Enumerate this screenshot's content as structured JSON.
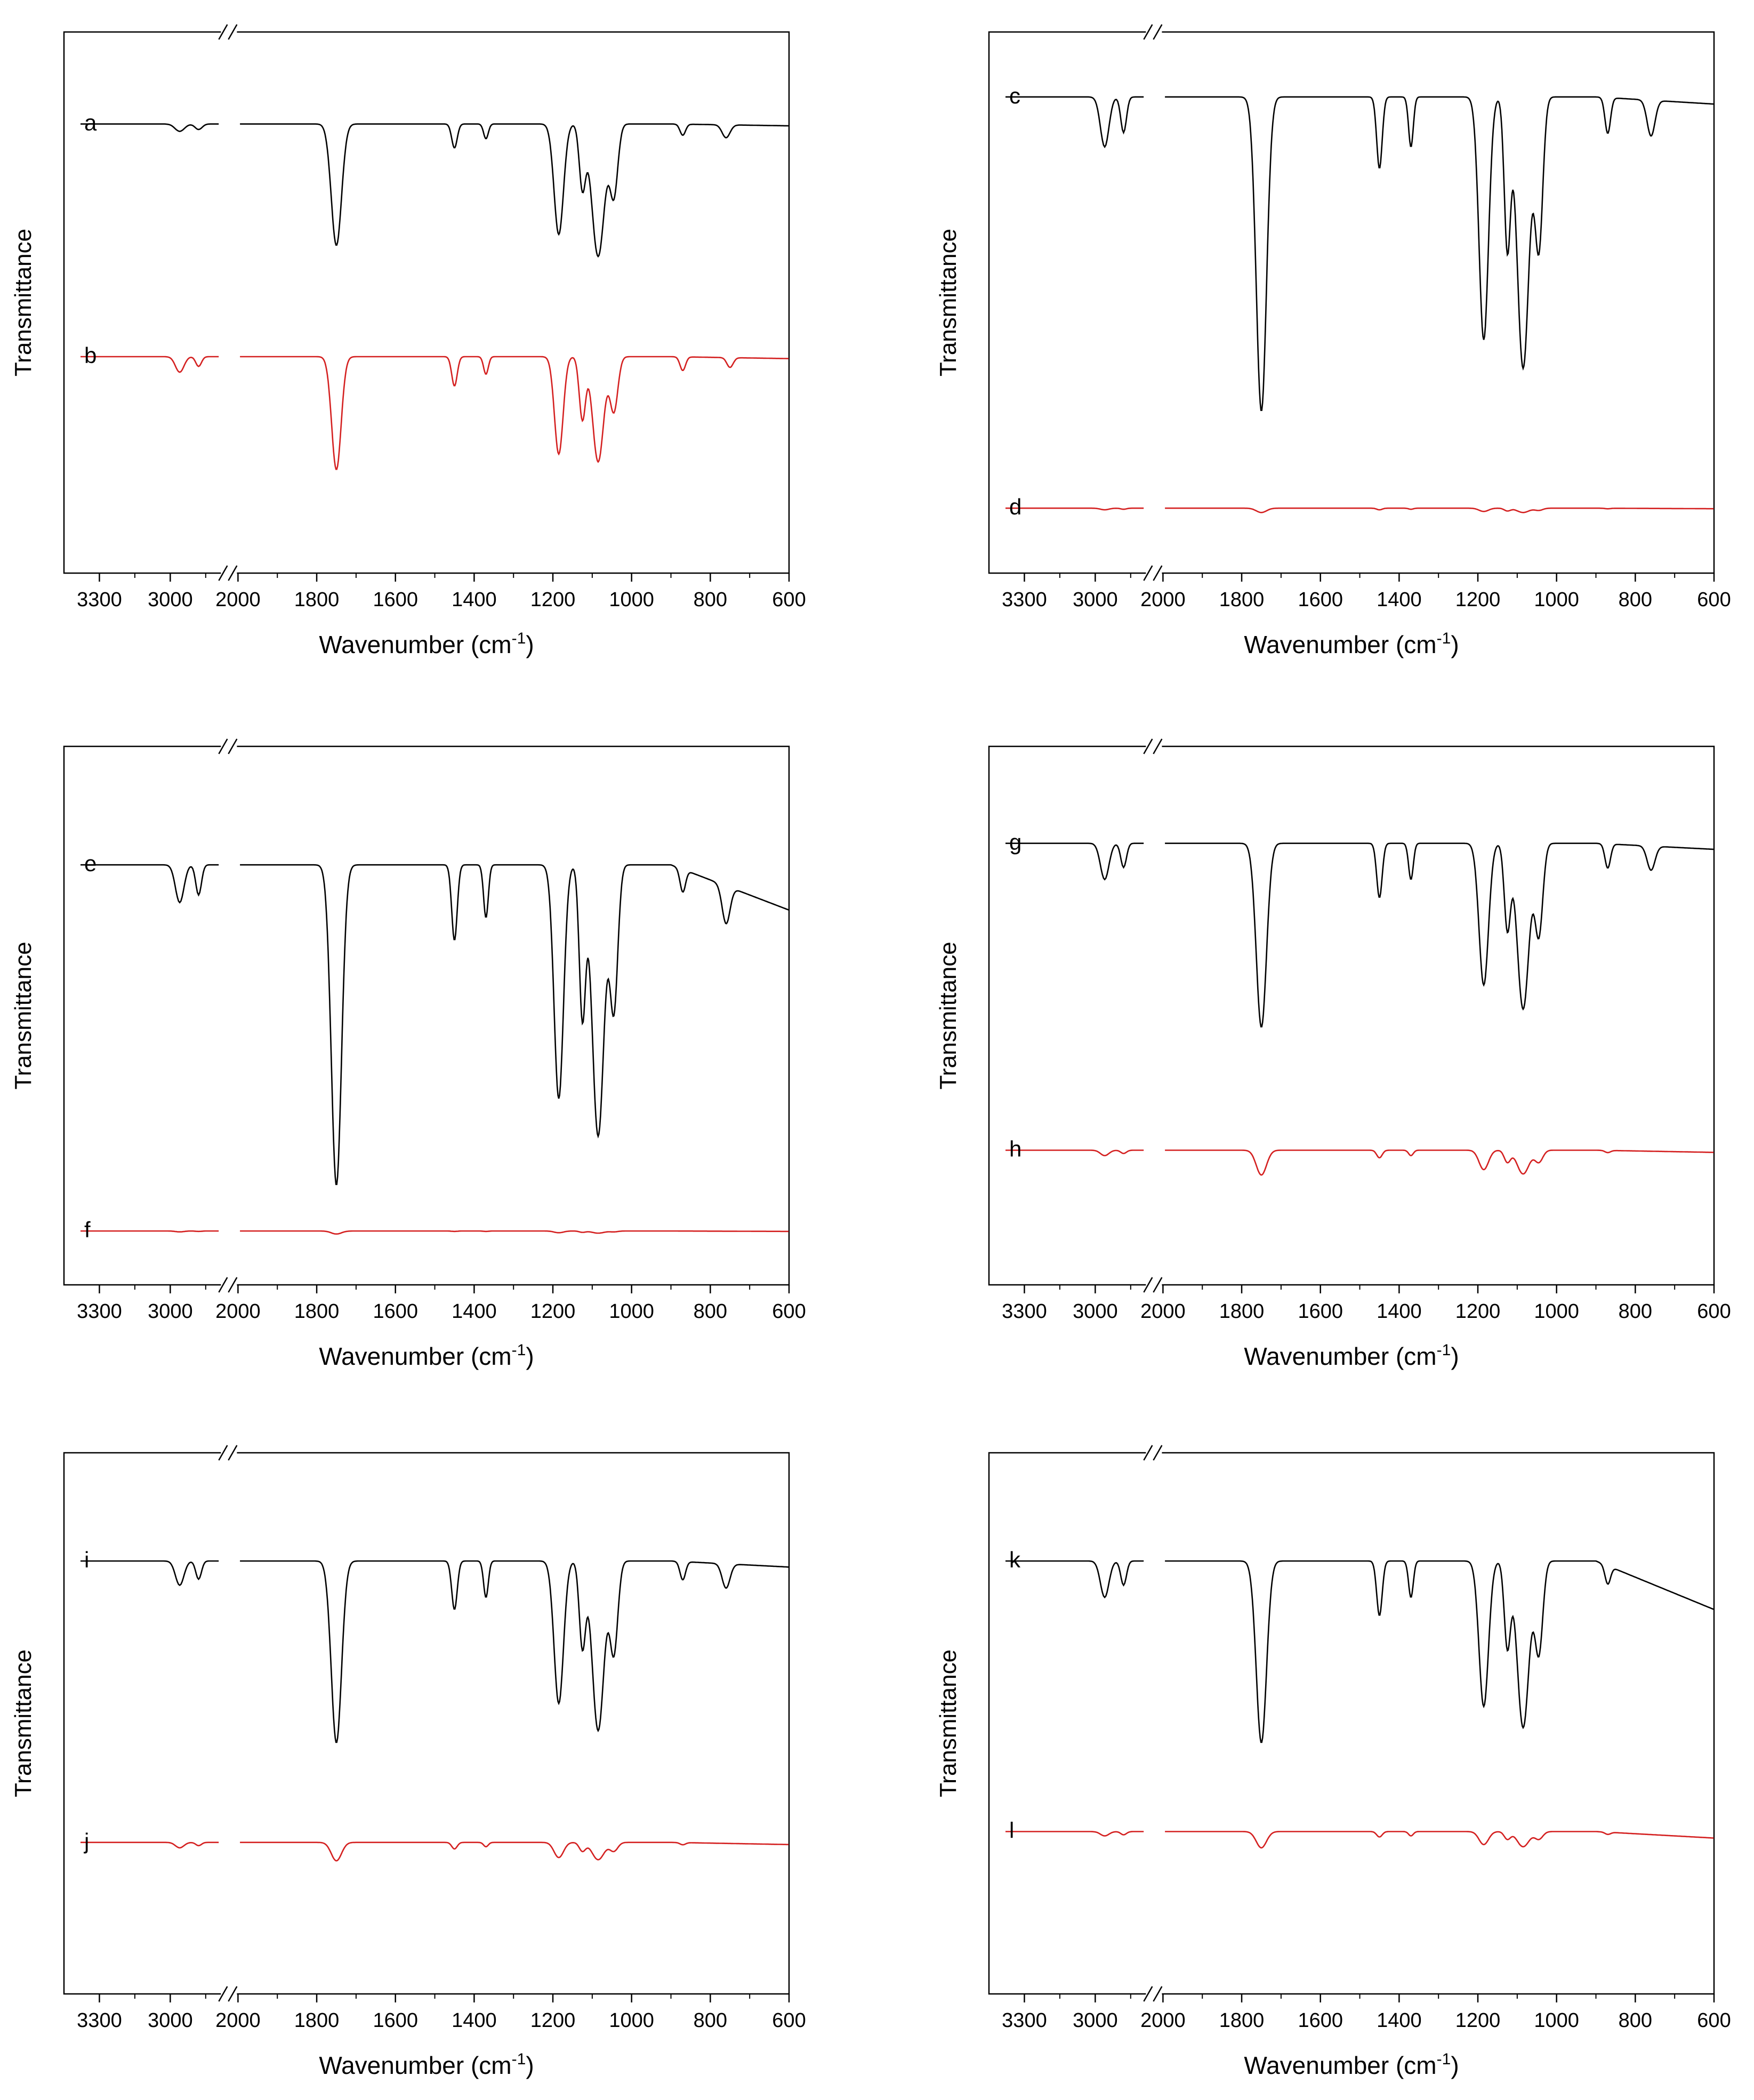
{
  "colors": {
    "upper_trace": "#000000",
    "lower_trace": "#d42020",
    "axis": "#000000"
  },
  "chart_data": [
    {
      "type": "line",
      "panel": "a-b",
      "xlabel": "Wavenumber (cm",
      "xlabel_sup": "-1",
      "xlabel_end": ")",
      "ylabel": "Transmittance",
      "x_segments": [
        [
          3450,
          2790
        ],
        [
          2000,
          600
        ]
      ],
      "xticks": [
        "3300",
        "3000",
        "2000",
        "1800",
        "1600",
        "1400",
        "1200",
        "1000",
        "800",
        "600"
      ],
      "ylim": [
        0,
        100
      ],
      "series": [
        {
          "name": "a",
          "color": "#000000",
          "baseline": 88,
          "slope": 0.0,
          "end": 87,
          "bands": [
            [
              1750,
              66,
              13
            ],
            [
              1450,
              13,
              7
            ],
            [
              1370,
              8,
              6
            ],
            [
              1185,
              60,
              12
            ],
            [
              1125,
              34,
              8
            ],
            [
              1085,
              72,
              16
            ],
            [
              1045,
              38,
              10
            ],
            [
              870,
              6,
              7
            ],
            [
              760,
              7,
              10
            ],
            [
              2960,
              4,
              20
            ],
            [
              2880,
              3,
              15
            ]
          ]
        },
        {
          "name": "b",
          "color": "#d42020",
          "baseline": 45,
          "slope": 0.0,
          "end": 44,
          "bands": [
            [
              1750,
              58,
              12
            ],
            [
              1450,
              15,
              7
            ],
            [
              1370,
              9,
              6
            ],
            [
              1185,
              50,
              11
            ],
            [
              1125,
              32,
              8
            ],
            [
              1085,
              54,
              14
            ],
            [
              1045,
              28,
              10
            ],
            [
              870,
              7,
              7
            ],
            [
              750,
              5,
              8
            ],
            [
              2960,
              8,
              18
            ],
            [
              2880,
              5,
              12
            ]
          ]
        }
      ]
    },
    {
      "type": "line",
      "panel": "c-d",
      "xlabel": "Wavenumber (cm",
      "xlabel_sup": "-1",
      "xlabel_end": ")",
      "ylabel": "Transmittance",
      "x_segments": [
        [
          3450,
          2790
        ],
        [
          2000,
          600
        ]
      ],
      "xticks": [
        "3300",
        "3000",
        "2000",
        "1800",
        "1600",
        "1400",
        "1200",
        "1000",
        "800",
        "600"
      ],
      "ylim": [
        0,
        100
      ],
      "series": [
        {
          "name": "c",
          "color": "#000000",
          "baseline": 92,
          "slope": 0.0,
          "end": 90,
          "bands": [
            [
              1750,
              88,
              13
            ],
            [
              1450,
              20,
              7
            ],
            [
              1370,
              14,
              6
            ],
            [
              1185,
              68,
              12
            ],
            [
              1125,
              42,
              8
            ],
            [
              1085,
              76,
              15
            ],
            [
              1045,
              42,
              10
            ],
            [
              870,
              10,
              7
            ],
            [
              760,
              10,
              10
            ],
            [
              2960,
              14,
              18
            ],
            [
              2880,
              10,
              12
            ]
          ]
        },
        {
          "name": "d",
          "color": "#d42020",
          "baseline": 15,
          "slope": 0.0,
          "end": 14,
          "bands": [
            [
              1750,
              8,
              13
            ],
            [
              1450,
              3,
              7
            ],
            [
              1370,
              2,
              6
            ],
            [
              1185,
              6,
              12
            ],
            [
              1125,
              5,
              8
            ],
            [
              1085,
              8,
              15
            ],
            [
              1045,
              4,
              10
            ],
            [
              870,
              1,
              7
            ],
            [
              2960,
              3,
              18
            ],
            [
              2880,
              2,
              12
            ]
          ]
        }
      ]
    },
    {
      "type": "line",
      "panel": "e-f",
      "xlabel": "Wavenumber (cm",
      "xlabel_sup": "-1",
      "xlabel_end": ")",
      "ylabel": "Transmittance",
      "x_segments": [
        [
          3450,
          2790
        ],
        [
          2000,
          600
        ]
      ],
      "xticks": [
        "3300",
        "3000",
        "2000",
        "1800",
        "1600",
        "1400",
        "1200",
        "1000",
        "800",
        "600"
      ],
      "ylim": [
        0,
        100
      ],
      "series": [
        {
          "name": "e",
          "color": "#000000",
          "baseline": 92,
          "slope": 0.0,
          "end": 80,
          "bands": [
            [
              1750,
              85,
              13
            ],
            [
              1450,
              20,
              7
            ],
            [
              1370,
              14,
              6
            ],
            [
              1185,
              62,
              12
            ],
            [
              1125,
              40,
              8
            ],
            [
              1085,
              72,
              15
            ],
            [
              1045,
              38,
              10
            ],
            [
              870,
              6,
              7
            ],
            [
              760,
              10,
              10
            ],
            [
              2960,
              10,
              18
            ],
            [
              2880,
              8,
              12
            ]
          ]
        },
        {
          "name": "f",
          "color": "#d42020",
          "baseline": 16,
          "slope": 0.0,
          "end": 15,
          "bands": [
            [
              1750,
              7,
              13
            ],
            [
              1450,
              1,
              7
            ],
            [
              1370,
              1,
              6
            ],
            [
              1185,
              4,
              12
            ],
            [
              1125,
              3,
              8
            ],
            [
              1085,
              5,
              15
            ],
            [
              1045,
              2,
              10
            ],
            [
              2960,
              2,
              18
            ],
            [
              2880,
              1,
              12
            ]
          ]
        }
      ]
    },
    {
      "type": "line",
      "panel": "g-h",
      "xlabel": "Wavenumber (cm",
      "xlabel_sup": "-1",
      "xlabel_end": ")",
      "ylabel": "Transmittance",
      "x_segments": [
        [
          3450,
          2790
        ],
        [
          2000,
          600
        ]
      ],
      "xticks": [
        "3300",
        "3000",
        "2000",
        "1800",
        "1600",
        "1400",
        "1200",
        "1000",
        "800",
        "600"
      ],
      "ylim": [
        0,
        100
      ],
      "series": [
        {
          "name": "g",
          "color": "#000000",
          "baseline": 92,
          "slope": 0.0,
          "end": 90,
          "bands": [
            [
              1750,
              61,
              13
            ],
            [
              1450,
              18,
              7
            ],
            [
              1370,
              12,
              6
            ],
            [
              1185,
              47,
              12
            ],
            [
              1125,
              28,
              8
            ],
            [
              1085,
              55,
              15
            ],
            [
              1045,
              30,
              10
            ],
            [
              870,
              8,
              7
            ],
            [
              760,
              8,
              10
            ],
            [
              2960,
              12,
              18
            ],
            [
              2880,
              8,
              12
            ]
          ]
        },
        {
          "name": "h",
          "color": "#d42020",
          "baseline": 33,
          "slope": 0.0,
          "end": 31,
          "bands": [
            [
              1750,
              23,
              13
            ],
            [
              1450,
              7,
              7
            ],
            [
              1370,
              5,
              6
            ],
            [
              1185,
              18,
              12
            ],
            [
              1125,
              11,
              8
            ],
            [
              1085,
              22,
              15
            ],
            [
              1045,
              11,
              10
            ],
            [
              870,
              2,
              7
            ],
            [
              2960,
              5,
              18
            ],
            [
              2880,
              3,
              12
            ]
          ]
        }
      ]
    },
    {
      "type": "line",
      "panel": "i-j",
      "xlabel": "Wavenumber (cm",
      "xlabel_sup": "-1",
      "xlabel_end": ")",
      "ylabel": "Transmittance",
      "x_segments": [
        [
          3450,
          2790
        ],
        [
          2000,
          600
        ]
      ],
      "xticks": [
        "3300",
        "3000",
        "2000",
        "1800",
        "1600",
        "1400",
        "1200",
        "1000",
        "800",
        "600"
      ],
      "ylim": [
        0,
        100
      ],
      "series": [
        {
          "name": "i",
          "color": "#000000",
          "baseline": 92,
          "slope": 0.0,
          "end": 90,
          "bands": [
            [
              1750,
              60,
              13
            ],
            [
              1450,
              16,
              7
            ],
            [
              1370,
              12,
              6
            ],
            [
              1185,
              47,
              12
            ],
            [
              1125,
              28,
              8
            ],
            [
              1085,
              56,
              15
            ],
            [
              1045,
              30,
              10
            ],
            [
              870,
              6,
              7
            ],
            [
              760,
              8,
              10
            ],
            [
              2960,
              8,
              18
            ],
            [
              2880,
              6,
              12
            ]
          ]
        },
        {
          "name": "j",
          "color": "#d42020",
          "baseline": 28,
          "slope": 0.0,
          "end": 26,
          "bands": [
            [
              1750,
              17,
              13
            ],
            [
              1450,
              6,
              7
            ],
            [
              1370,
              4,
              6
            ],
            [
              1185,
              14,
              12
            ],
            [
              1125,
              8,
              8
            ],
            [
              1085,
              16,
              15
            ],
            [
              1045,
              8,
              10
            ],
            [
              870,
              2,
              7
            ],
            [
              2960,
              5,
              18
            ],
            [
              2880,
              3,
              12
            ]
          ]
        }
      ]
    },
    {
      "type": "line",
      "panel": "k-l",
      "xlabel": "Wavenumber (cm",
      "xlabel_sup": "-1",
      "xlabel_end": ")",
      "ylabel": "Transmittance",
      "x_segments": [
        [
          3450,
          2790
        ],
        [
          2000,
          600
        ]
      ],
      "xticks": [
        "3300",
        "3000",
        "2000",
        "1800",
        "1600",
        "1400",
        "1200",
        "1000",
        "800",
        "600"
      ],
      "ylim": [
        0,
        100
      ],
      "series": [
        {
          "name": "k",
          "color": "#000000",
          "baseline": 92,
          "slope": 0.0,
          "end": 76,
          "bands": [
            [
              1750,
              60,
              13
            ],
            [
              1450,
              18,
              7
            ],
            [
              1370,
              12,
              6
            ],
            [
              1185,
              48,
              12
            ],
            [
              1125,
              28,
              8
            ],
            [
              1085,
              55,
              15
            ],
            [
              1045,
              30,
              10
            ],
            [
              870,
              6,
              7
            ],
            [
              2960,
              12,
              18
            ],
            [
              2880,
              8,
              12
            ]
          ]
        },
        {
          "name": "l",
          "color": "#d42020",
          "baseline": 24,
          "slope": 0.0,
          "end": 18,
          "bands": [
            [
              1750,
              15,
              13
            ],
            [
              1450,
              5,
              7
            ],
            [
              1370,
              4,
              6
            ],
            [
              1185,
              12,
              12
            ],
            [
              1125,
              7,
              8
            ],
            [
              1085,
              14,
              15
            ],
            [
              1045,
              7,
              10
            ],
            [
              870,
              2,
              7
            ],
            [
              2960,
              4,
              18
            ],
            [
              2880,
              3,
              12
            ]
          ]
        }
      ]
    }
  ]
}
